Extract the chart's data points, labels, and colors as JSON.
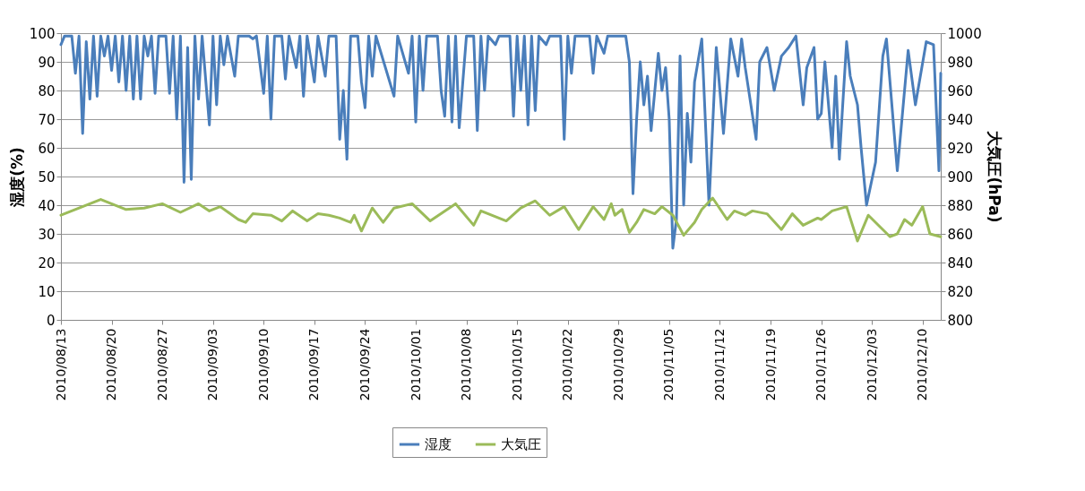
{
  "chart_data": {
    "type": "line",
    "ylabel": "湿度(%)",
    "y2label": "大気圧(hPa)",
    "xlim": [
      "2010-08-13",
      "2010-12-12T12:00"
    ],
    "xticks": [
      {
        "value": "2010-08-13",
        "label": "2010/08/13"
      },
      {
        "value": "2010-08-20",
        "label": "2010/08/20"
      },
      {
        "value": "2010-08-27",
        "label": "2010/08/27"
      },
      {
        "value": "2010-09-03",
        "label": "2010/09/03"
      },
      {
        "value": "2010-09-10",
        "label": "2010/09/10"
      },
      {
        "value": "2010-09-17",
        "label": "2010/09/17"
      },
      {
        "value": "2010-09-24",
        "label": "2010/09/24"
      },
      {
        "value": "2010-10-01",
        "label": "2010/10/01"
      },
      {
        "value": "2010-10-08",
        "label": "2010/10/08"
      },
      {
        "value": "2010-10-15",
        "label": "2010/10/15"
      },
      {
        "value": "2010-10-22",
        "label": "2010/10/22"
      },
      {
        "value": "2010-10-29",
        "label": "2010/10/29"
      },
      {
        "value": "2010-11-05",
        "label": "2010/11/05"
      },
      {
        "value": "2010-11-12",
        "label": "2010/11/12"
      },
      {
        "value": "2010-11-19",
        "label": "2010/11/19"
      },
      {
        "value": "2010-11-26",
        "label": "2010/11/26"
      },
      {
        "value": "2010-12-03",
        "label": "2010/12/03"
      },
      {
        "value": "2010-12-10",
        "label": "2010/12/10"
      }
    ],
    "ylim": [
      0,
      100
    ],
    "yticks": [
      0,
      10,
      20,
      30,
      40,
      50,
      60,
      70,
      80,
      90,
      100
    ],
    "y2lim": [
      800,
      1000
    ],
    "y2ticks": [
      800,
      820,
      840,
      860,
      880,
      900,
      920,
      940,
      960,
      980,
      1000
    ],
    "grid": "y",
    "legend": "bottom",
    "marker": "none",
    "line_style": "solid",
    "series": [
      {
        "name": "湿度",
        "color": "#4a7ebb",
        "x": [
          "2010-08-13",
          "2010-08-13T12:00",
          "2010-08-14T12:00",
          "2010-08-15",
          "2010-08-15T12:00",
          "2010-08-16",
          "2010-08-16T12:00",
          "2010-08-17",
          "2010-08-17T12:00",
          "2010-08-18",
          "2010-08-18T12:00",
          "2010-08-19",
          "2010-08-19T12:00",
          "2010-08-20",
          "2010-08-20T12:00",
          "2010-08-21",
          "2010-08-21T12:00",
          "2010-08-22",
          "2010-08-22T12:00",
          "2010-08-23",
          "2010-08-23T12:00",
          "2010-08-24",
          "2010-08-24T12:00",
          "2010-08-25",
          "2010-08-25T12:00",
          "2010-08-26",
          "2010-08-26T12:00",
          "2010-08-27T12:00",
          "2010-08-28",
          "2010-08-28T12:00",
          "2010-08-29",
          "2010-08-29T12:00",
          "2010-08-30",
          "2010-08-30T12:00",
          "2010-08-31",
          "2010-08-31T12:00",
          "2010-09-01",
          "2010-09-01T12:00",
          "2010-09-02T12:00",
          "2010-09-03",
          "2010-09-03T12:00",
          "2010-09-04",
          "2010-09-04T12:00",
          "2010-09-05",
          "2010-09-06",
          "2010-09-06T12:00",
          "2010-09-08",
          "2010-09-08T12:00",
          "2010-09-09",
          "2010-09-10",
          "2010-09-10T12:00",
          "2010-09-11",
          "2010-09-11T12:00",
          "2010-09-12T12:00",
          "2010-09-13",
          "2010-09-13T12:00",
          "2010-09-14T12:00",
          "2010-09-15",
          "2010-09-15T12:00",
          "2010-09-16",
          "2010-09-17",
          "2010-09-17T12:00",
          "2010-09-18T12:00",
          "2010-09-19",
          "2010-09-20",
          "2010-09-20T12:00",
          "2010-09-21",
          "2010-09-21T12:00",
          "2010-09-22",
          "2010-09-23",
          "2010-09-23T12:00",
          "2010-09-24",
          "2010-09-24T12:00",
          "2010-09-25",
          "2010-09-25T12:00",
          "2010-09-28",
          "2010-09-28T12:00",
          "2010-09-30",
          "2010-09-30T12:00",
          "2010-10-01",
          "2010-10-01T12:00",
          "2010-10-02",
          "2010-10-02T12:00",
          "2010-10-04",
          "2010-10-04T12:00",
          "2010-10-05",
          "2010-10-05T12:00",
          "2010-10-06",
          "2010-10-06T12:00",
          "2010-10-07",
          "2010-10-07T12:00",
          "2010-10-08",
          "2010-10-09",
          "2010-10-09T12:00",
          "2010-10-10",
          "2010-10-10T12:00",
          "2010-10-11",
          "2010-10-12",
          "2010-10-12T12:00",
          "2010-10-14",
          "2010-10-14T12:00",
          "2010-10-15",
          "2010-10-15T12:00",
          "2010-10-16",
          "2010-10-16T12:00",
          "2010-10-17",
          "2010-10-17T12:00",
          "2010-10-18",
          "2010-10-19",
          "2010-10-19T12:00",
          "2010-10-21",
          "2010-10-21T12:00",
          "2010-10-22",
          "2010-10-22T12:00",
          "2010-10-23",
          "2010-10-25",
          "2010-10-25T12:00",
          "2010-10-26",
          "2010-10-27",
          "2010-10-27T12:00",
          "2010-10-30",
          "2010-10-30T12:00",
          "2010-10-31",
          "2010-10-31T12:00",
          "2010-11-01",
          "2010-11-01T12:00",
          "2010-11-02",
          "2010-11-02T12:00",
          "2010-11-03T12:00",
          "2010-11-04",
          "2010-11-04T12:00",
          "2010-11-05",
          "2010-11-05T12:00",
          "2010-11-06",
          "2010-11-06T12:00",
          "2010-11-07",
          "2010-11-07T12:00",
          "2010-11-08",
          "2010-11-08T12:00",
          "2010-11-09T12:00",
          "2010-11-10T12:00",
          "2010-11-11T12:00",
          "2010-11-12T12:00",
          "2010-11-13T12:00",
          "2010-11-14T12:00",
          "2010-11-15",
          "2010-11-15T12:00",
          "2010-11-17",
          "2010-11-17T12:00",
          "2010-11-18T12:00",
          "2010-11-19T12:00",
          "2010-11-20T12:00",
          "2010-11-21T12:00",
          "2010-11-22T12:00",
          "2010-11-23T12:00",
          "2010-11-24",
          "2010-11-25",
          "2010-11-25T12:00",
          "2010-11-26",
          "2010-11-26T12:00",
          "2010-11-27T12:00",
          "2010-11-28",
          "2010-11-28T12:00",
          "2010-11-29T12:00",
          "2010-11-30",
          "2010-12-01",
          "2010-12-01T12:00",
          "2010-12-02T06:00",
          "2010-12-03T12:00",
          "2010-12-04T12:00",
          "2010-12-05",
          "2010-12-06T12:00",
          "2010-12-08",
          "2010-12-09",
          "2010-12-10T12:00",
          "2010-12-11T12:00",
          "2010-12-12T06:00",
          "2010-12-12T12:00"
        ],
        "values": [
          96,
          99,
          99,
          86,
          99,
          65,
          97,
          77,
          99,
          78,
          99,
          92,
          99,
          87,
          99,
          83,
          99,
          80,
          99,
          77,
          99,
          77,
          99,
          92,
          99,
          79,
          99,
          99,
          79,
          99,
          70,
          99,
          48,
          95,
          49,
          99,
          77,
          99,
          68,
          99,
          75,
          99,
          89,
          99,
          85,
          99,
          99,
          98,
          99,
          79,
          99,
          70,
          99,
          99,
          84,
          99,
          88,
          99,
          78,
          99,
          83,
          99,
          85,
          99,
          99,
          63,
          80,
          56,
          99,
          99,
          83,
          74,
          99,
          85,
          99,
          78,
          99,
          86,
          99,
          69,
          99,
          80,
          99,
          99,
          80,
          71,
          99,
          69,
          99,
          67,
          83,
          99,
          99,
          66,
          99,
          80,
          99,
          96,
          99,
          99,
          71,
          99,
          80,
          99,
          68,
          99,
          73,
          99,
          96,
          99,
          99,
          63,
          99,
          86,
          99,
          99,
          86,
          99,
          93,
          99,
          99,
          90,
          44,
          70,
          90,
          75,
          85,
          66,
          93,
          80,
          88,
          70,
          25,
          35,
          92,
          40,
          72,
          55,
          83,
          98,
          40,
          95,
          65,
          98,
          85,
          98,
          88,
          63,
          90,
          95,
          80,
          92,
          95,
          99,
          75,
          88,
          95,
          70,
          72,
          90,
          60,
          85,
          56,
          97,
          85,
          75,
          60,
          40,
          55,
          92,
          98,
          52,
          94,
          75,
          97,
          96,
          52,
          86
        ]
      },
      {
        "name": "大気圧",
        "color": "#9bbb59",
        "axis": "y2",
        "x": [
          "2010-08-13",
          "2010-08-18T12:00",
          "2010-08-22",
          "2010-08-24T12:00",
          "2010-08-27",
          "2010-08-29T12:00",
          "2010-09-01",
          "2010-09-02T12:00",
          "2010-09-04",
          "2010-09-06T12:00",
          "2010-09-07T12:00",
          "2010-09-08T12:00",
          "2010-09-11",
          "2010-09-12T12:00",
          "2010-09-14",
          "2010-09-16",
          "2010-09-17T12:00",
          "2010-09-19",
          "2010-09-20T12:00",
          "2010-09-21T12:00",
          "2010-09-22",
          "2010-09-22T12:00",
          "2010-09-23T12:00",
          "2010-09-25",
          "2010-09-26T12:00",
          "2010-09-28",
          "2010-09-30T12:00",
          "2010-10-03",
          "2010-10-06T12:00",
          "2010-10-09",
          "2010-10-10",
          "2010-10-13T12:00",
          "2010-10-15T12:00",
          "2010-10-17T12:00",
          "2010-10-19T12:00",
          "2010-10-21T12:00",
          "2010-10-23T12:00",
          "2010-10-25T12:00",
          "2010-10-27",
          "2010-10-28",
          "2010-10-28T12:00",
          "2010-10-29T12:00",
          "2010-10-30T12:00",
          "2010-10-31T12:00",
          "2010-11-01T12:00",
          "2010-11-03",
          "2010-11-04",
          "2010-11-05T12:00",
          "2010-11-07",
          "2010-11-08T12:00",
          "2010-11-09T12:00",
          "2010-11-11",
          "2010-11-13",
          "2010-11-14",
          "2010-11-15T12:00",
          "2010-11-16T12:00",
          "2010-11-18T12:00",
          "2010-11-20T12:00",
          "2010-11-22",
          "2010-11-23T12:00",
          "2010-11-25T12:00",
          "2010-11-26",
          "2010-11-27T12:00",
          "2010-11-29T12:00",
          "2010-12-01",
          "2010-12-02T12:00",
          "2010-12-04T12:00",
          "2010-12-05T12:00",
          "2010-12-06T12:00",
          "2010-12-07T12:00",
          "2010-12-08T12:00",
          "2010-12-10",
          "2010-12-11",
          "2010-12-12T12:00"
        ],
        "values": [
          873,
          884,
          877,
          878,
          881,
          875,
          881,
          876,
          879,
          870,
          868,
          874,
          873,
          869,
          876,
          869,
          874,
          873,
          871,
          869,
          868,
          873,
          862,
          878,
          868,
          878,
          881,
          869,
          881,
          866,
          876,
          869,
          878,
          883,
          873,
          879,
          863,
          879,
          870,
          881,
          873,
          877,
          861,
          868,
          877,
          874,
          879,
          873,
          859,
          868,
          877,
          885,
          870,
          876,
          873,
          876,
          874,
          863,
          874,
          866,
          871,
          870,
          876,
          879,
          855,
          873,
          863,
          858,
          860,
          870,
          866,
          879,
          860,
          858
        ]
      }
    ]
  }
}
